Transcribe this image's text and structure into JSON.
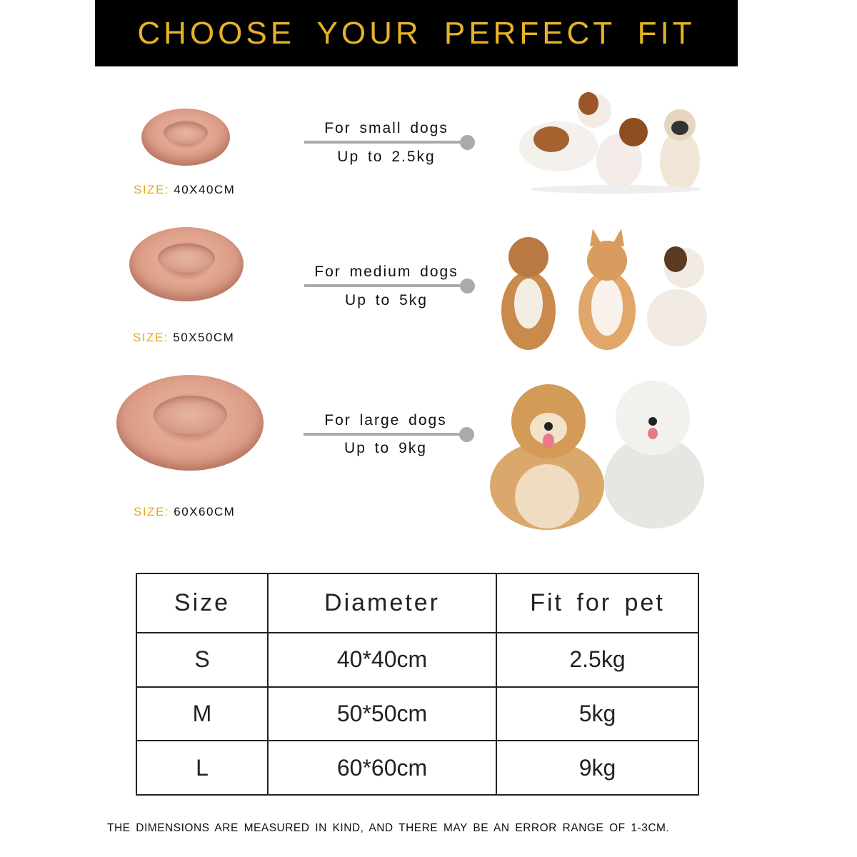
{
  "title": "CHOOSE YOUR PERFECT FIT",
  "colors": {
    "banner_bg": "#000000",
    "title": "#e6b325",
    "size_key": "#e0a820",
    "bed": "#d99a86",
    "connector": "#aaaaaa"
  },
  "rows": [
    {
      "size_key": "SIZE:",
      "size_value": "40X40CM",
      "fit": "For small dogs",
      "weight": "Up to 2.5kg",
      "image": "small-dogs-photo"
    },
    {
      "size_key": "SIZE:",
      "size_value": "50X50CM",
      "fit": "For medium dogs",
      "weight": "Up to 5kg",
      "image": "medium-dogs-photo"
    },
    {
      "size_key": "SIZE:",
      "size_value": "60X60CM",
      "fit": "For large dogs",
      "weight": "Up to 9kg",
      "image": "large-dogs-photo"
    }
  ],
  "table": {
    "headers": [
      "Size",
      "Diameter",
      "Fit for pet"
    ],
    "rows": [
      [
        "S",
        "40*40cm",
        "2.5kg"
      ],
      [
        "M",
        "50*50cm",
        "5kg"
      ],
      [
        "L",
        "60*60cm",
        "9kg"
      ]
    ]
  },
  "note": "THE DIMENSIONS ARE MEASURED IN KIND, AND THERE MAY BE AN ERROR RANGE OF 1-3CM."
}
